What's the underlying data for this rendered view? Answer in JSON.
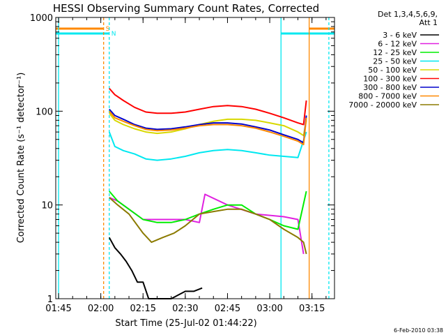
{
  "chart_data": {
    "type": "line",
    "title": "HESSI Observing Summary Count Rates, Corrected",
    "xlabel": "Start Time (25-Jul-02 01:44:22)",
    "ylabel": "Corrected Count Rate (s⁻¹ detector⁻¹)",
    "y_scale": "log",
    "ylim": [
      1,
      1000
    ],
    "xlim": [
      "01:44",
      "03:23"
    ],
    "x_ticks": [
      "01:45",
      "02:00",
      "02:15",
      "02:30",
      "02:45",
      "03:00",
      "03:15"
    ],
    "y_ticks": [
      "1",
      "10",
      "100",
      "1000"
    ],
    "grid": false,
    "legend_title": [
      "Det 1,3,4,5,6,9,",
      "Att 1"
    ],
    "legend_position": "right",
    "timestamp": "6-Feb-2010 03:38",
    "series": [
      {
        "name": "3 - 6 keV",
        "color": "#000000",
        "x": [
          "02:03",
          "02:05",
          "02:07",
          "02:09",
          "02:11",
          "02:13",
          "02:15",
          "02:17",
          "02:20",
          "02:25",
          "02:30",
          "02:33",
          "02:36"
        ],
        "values": [
          4.5,
          3.5,
          3,
          2.5,
          2,
          1.5,
          1.5,
          1,
          1,
          1,
          1.2,
          1.2,
          1.3
        ]
      },
      {
        "name": "6 - 12 keV",
        "color": "#e020e0",
        "x": [
          "02:03",
          "02:06",
          "02:10",
          "02:15",
          "02:20",
          "02:25",
          "02:30",
          "02:35",
          "02:37",
          "02:45",
          "02:55",
          "03:05",
          "03:10",
          "03:12"
        ],
        "values": [
          12,
          11,
          9,
          7,
          7,
          7,
          7,
          6.5,
          13,
          10,
          8,
          7.5,
          7,
          3
        ]
      },
      {
        "name": "12 - 25 keV",
        "color": "#00ee00",
        "x": [
          "02:03",
          "02:06",
          "02:10",
          "02:15",
          "02:20",
          "02:25",
          "02:30",
          "02:35",
          "02:40",
          "02:45",
          "02:50",
          "02:55",
          "03:00",
          "03:05",
          "03:10",
          "03:13"
        ],
        "values": [
          14,
          11,
          9,
          7,
          6.5,
          6.5,
          7,
          8,
          9,
          10,
          10,
          8,
          7,
          6,
          5.5,
          14
        ]
      },
      {
        "name": "25 - 50 keV",
        "color": "#00e8f0",
        "x": [
          "02:03",
          "02:05",
          "02:08",
          "02:12",
          "02:16",
          "02:20",
          "02:25",
          "02:30",
          "02:35",
          "02:40",
          "02:45",
          "02:50",
          "02:55",
          "03:00",
          "03:05",
          "03:10",
          "03:13"
        ],
        "values": [
          60,
          42,
          38,
          35,
          31,
          30,
          31,
          33,
          36,
          38,
          39,
          38,
          36,
          34,
          33,
          32,
          60
        ]
      },
      {
        "name": "50 - 100 keV",
        "color": "#d8d800",
        "x": [
          "02:03",
          "02:05",
          "02:08",
          "02:12",
          "02:16",
          "02:20",
          "02:25",
          "02:30",
          "02:35",
          "02:40",
          "02:45",
          "02:50",
          "02:55",
          "03:00",
          "03:05",
          "03:10",
          "03:12",
          "03:13"
        ],
        "values": [
          95,
          80,
          72,
          65,
          60,
          58,
          60,
          65,
          72,
          78,
          82,
          82,
          80,
          75,
          70,
          60,
          55,
          80
        ]
      },
      {
        "name": "100 - 300 keV",
        "color": "#ff0000",
        "x": [
          "02:03",
          "02:05",
          "02:08",
          "02:12",
          "02:16",
          "02:20",
          "02:25",
          "02:30",
          "02:35",
          "02:40",
          "02:45",
          "02:50",
          "02:55",
          "03:00",
          "03:05",
          "03:10",
          "03:12",
          "03:13"
        ],
        "values": [
          175,
          150,
          130,
          110,
          98,
          95,
          95,
          98,
          105,
          112,
          115,
          112,
          105,
          95,
          85,
          75,
          72,
          130
        ]
      },
      {
        "name": "300 - 800 keV",
        "color": "#0000cc",
        "x": [
          "02:03",
          "02:05",
          "02:08",
          "02:12",
          "02:16",
          "02:20",
          "02:25",
          "02:30",
          "02:35",
          "02:40",
          "02:45",
          "02:50",
          "02:55",
          "03:00",
          "03:05",
          "03:10",
          "03:12",
          "03:13"
        ],
        "values": [
          105,
          90,
          82,
          72,
          66,
          64,
          65,
          68,
          72,
          75,
          75,
          73,
          68,
          63,
          56,
          50,
          46,
          90
        ]
      },
      {
        "name": "800 - 7000 keV",
        "color": "#ff8800",
        "x": [
          "02:03",
          "02:05",
          "02:08",
          "02:12",
          "02:16",
          "02:20",
          "02:25",
          "02:30",
          "02:35",
          "02:40",
          "02:45",
          "02:50",
          "02:55",
          "03:00",
          "03:05",
          "03:10",
          "03:12",
          "03:13"
        ],
        "values": [
          100,
          85,
          78,
          70,
          64,
          62,
          63,
          66,
          70,
          72,
          72,
          70,
          66,
          60,
          54,
          48,
          44,
          85
        ]
      },
      {
        "name": "7000 - 20000 keV",
        "color": "#8b7a00",
        "x": [
          "02:03",
          "02:06",
          "02:10",
          "02:15",
          "02:18",
          "02:22",
          "02:26",
          "02:30",
          "02:35",
          "02:40",
          "02:45",
          "02:50",
          "02:55",
          "03:00",
          "03:05",
          "03:10",
          "03:12",
          "03:13"
        ],
        "values": [
          12,
          10,
          8,
          5,
          4,
          4.5,
          5,
          6,
          8,
          8.5,
          9,
          9,
          8,
          7,
          5.5,
          4.5,
          4,
          3
        ]
      }
    ],
    "markers": {
      "vertical_lines": [
        {
          "time": "01:45",
          "color": "#00e8f0",
          "style": "solid"
        },
        {
          "time": "02:01",
          "color": "#ff8800",
          "style": "dashed"
        },
        {
          "time": "02:03",
          "color": "#00e8f0",
          "style": "dashed"
        },
        {
          "time": "03:04",
          "color": "#00e8f0",
          "style": "solid"
        },
        {
          "time": "03:14",
          "color": "#ff8800",
          "style": "solid"
        },
        {
          "time": "03:21",
          "color": "#00e8f0",
          "style": "dashed"
        }
      ],
      "bars": [
        {
          "from": "01:44",
          "to": "02:01",
          "color": "#ff8800",
          "label": "S"
        },
        {
          "from": "01:44",
          "to": "02:03",
          "color": "#00e8f0",
          "label": "N"
        },
        {
          "from": "03:14",
          "to": "03:23",
          "color": "#ff8800",
          "label": ""
        },
        {
          "from": "03:04",
          "to": "03:23",
          "color": "#00e8f0",
          "label": ""
        }
      ]
    }
  }
}
